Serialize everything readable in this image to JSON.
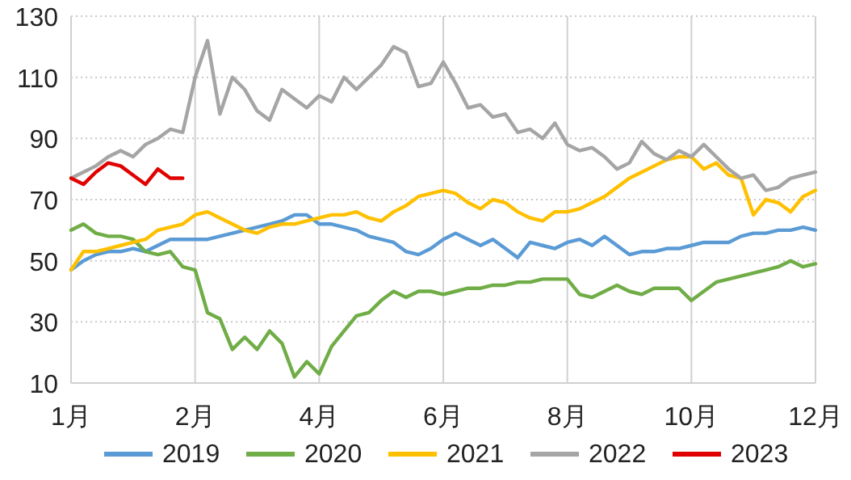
{
  "chart_data": {
    "type": "line",
    "ylim": [
      10,
      130
    ],
    "categories": [
      "1月",
      null,
      null,
      null,
      null,
      null,
      null,
      null,
      null,
      null,
      "2月",
      null,
      null,
      null,
      null,
      null,
      null,
      null,
      null,
      null,
      "4月",
      null,
      null,
      null,
      null,
      null,
      null,
      null,
      null,
      null,
      "6月",
      null,
      null,
      null,
      null,
      null,
      null,
      null,
      null,
      null,
      "8月",
      null,
      null,
      null,
      null,
      null,
      null,
      null,
      null,
      null,
      "10月",
      null,
      null,
      null,
      null,
      null,
      null,
      null,
      null,
      null,
      "12月"
    ],
    "yticks": [
      10,
      30,
      50,
      70,
      90,
      110,
      130
    ],
    "grid": true,
    "legend": "bottom",
    "series": [
      {
        "name": "2019",
        "color": "#5b9bd5",
        "values": [
          47,
          50,
          52,
          53,
          53,
          54,
          53,
          55,
          57,
          57,
          57,
          57,
          58,
          59,
          60,
          61,
          62,
          63,
          65,
          65,
          62,
          62,
          61,
          60,
          58,
          57,
          56,
          53,
          52,
          54,
          57,
          59,
          57,
          55,
          57,
          54,
          51,
          56,
          55,
          54,
          56,
          57,
          55,
          58,
          55,
          52,
          53,
          53,
          54,
          54,
          55,
          56,
          56,
          56,
          58,
          59,
          59,
          60,
          60,
          61,
          60
        ]
      },
      {
        "name": "2020",
        "color": "#70ad47",
        "values": [
          60,
          62,
          59,
          58,
          58,
          57,
          53,
          52,
          53,
          48,
          47,
          33,
          31,
          21,
          25,
          21,
          27,
          23,
          12,
          17,
          13,
          22,
          27,
          32,
          33,
          37,
          40,
          38,
          40,
          40,
          39,
          40,
          41,
          41,
          42,
          42,
          43,
          43,
          44,
          44,
          44,
          39,
          38,
          40,
          42,
          40,
          39,
          41,
          41,
          41,
          37,
          40,
          43,
          44,
          45,
          46,
          47,
          48,
          50,
          48,
          49
        ]
      },
      {
        "name": "2021",
        "color": "#ffc000",
        "values": [
          47,
          53,
          53,
          54,
          55,
          56,
          57,
          60,
          61,
          62,
          65,
          66,
          64,
          62,
          60,
          59,
          61,
          62,
          62,
          63,
          64,
          65,
          65,
          66,
          64,
          63,
          66,
          68,
          71,
          72,
          73,
          72,
          69,
          67,
          70,
          69,
          66,
          64,
          63,
          66,
          66,
          67,
          69,
          71,
          74,
          77,
          79,
          81,
          83,
          84,
          84,
          80,
          82,
          78,
          77,
          65,
          70,
          69,
          66,
          71,
          73
        ]
      },
      {
        "name": "2022",
        "color": "#a5a5a5",
        "values": [
          77,
          79,
          81,
          84,
          86,
          84,
          88,
          90,
          93,
          92,
          110,
          122,
          98,
          110,
          106,
          99,
          96,
          106,
          103,
          100,
          104,
          102,
          110,
          106,
          110,
          114,
          120,
          118,
          107,
          108,
          115,
          108,
          100,
          101,
          97,
          98,
          92,
          93,
          90,
          95,
          88,
          86,
          87,
          84,
          80,
          82,
          89,
          85,
          83,
          86,
          84,
          88,
          84,
          80,
          77,
          78,
          73,
          74,
          77,
          78,
          79
        ]
      },
      {
        "name": "2023",
        "color": "#e00000",
        "values": [
          77,
          75,
          79,
          82,
          81,
          78,
          75,
          80,
          77,
          77,
          null,
          null,
          null,
          null,
          null,
          null,
          null,
          null,
          null,
          null,
          null,
          null,
          null,
          null,
          null,
          null,
          null,
          null,
          null,
          null,
          null,
          null,
          null,
          null,
          null,
          null,
          null,
          null,
          null,
          null,
          null,
          null,
          null,
          null,
          null,
          null,
          null,
          null,
          null,
          null,
          null,
          null,
          null,
          null,
          null,
          null,
          null,
          null,
          null,
          null,
          null
        ]
      }
    ]
  }
}
